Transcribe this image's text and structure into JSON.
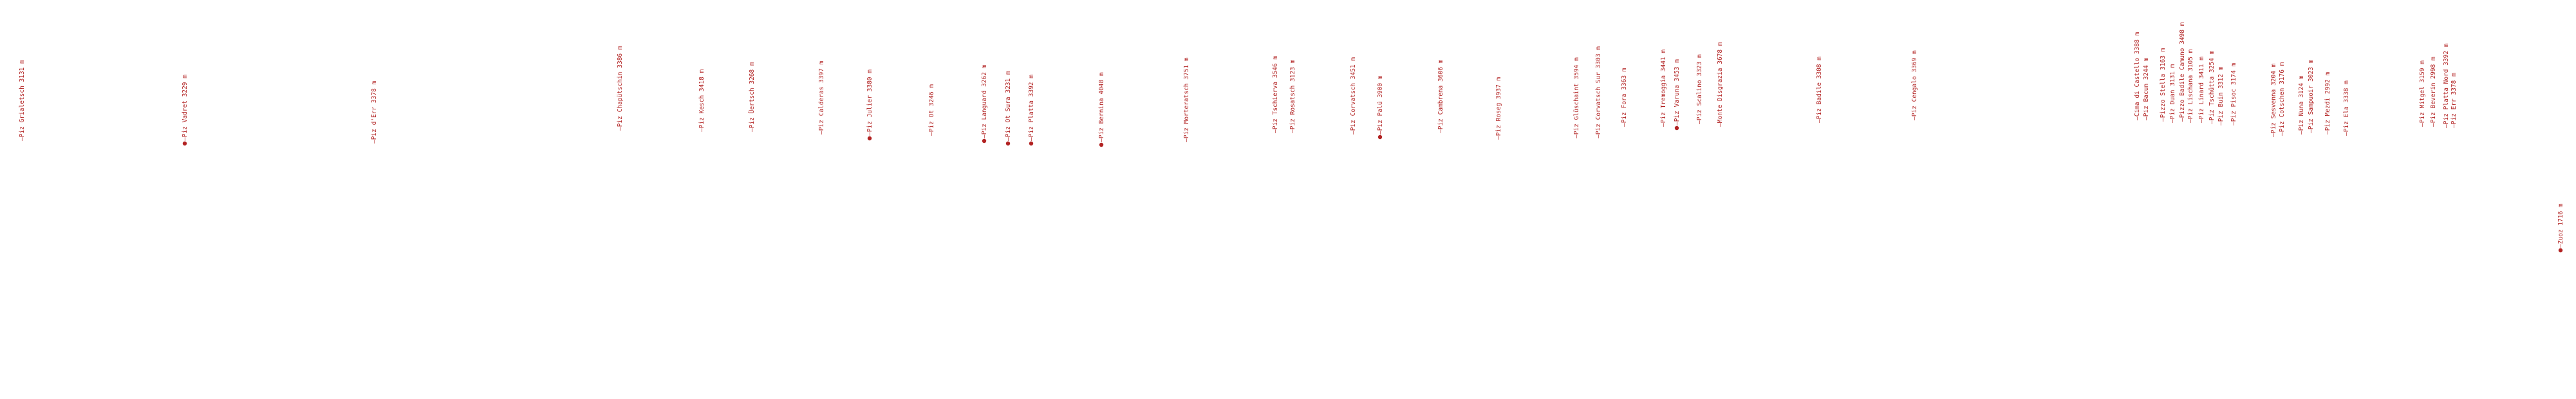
{
  "colors": {
    "marker": "#b22222",
    "text": "#b22222"
  },
  "peaks": [
    {
      "name": "Piz Grialetsch",
      "elevation": "3131 m",
      "marker": "tick"
    },
    {
      "name": "Piz Vadret",
      "elevation": "3229 m",
      "marker": "dot"
    },
    {
      "name": "Piz d'Err",
      "elevation": "3378 m",
      "marker": "tick"
    },
    {
      "name": "Piz Chapütschin",
      "elevation": "3386 m",
      "marker": "tick"
    },
    {
      "name": "Piz Kesch",
      "elevation": "3418 m",
      "marker": "tick"
    },
    {
      "name": "Piz Üertsch",
      "elevation": "3268 m",
      "marker": "tick"
    },
    {
      "name": "Piz Calderas",
      "elevation": "3397 m",
      "marker": "tick"
    },
    {
      "name": "Piz Julier",
      "elevation": "3380 m",
      "marker": "dot"
    },
    {
      "name": "Piz Ot",
      "elevation": "3246 m",
      "marker": "tick"
    },
    {
      "name": "Piz Languard",
      "elevation": "3262 m",
      "marker": "dot"
    },
    {
      "name": "Piz Ot Sura",
      "elevation": "3231 m",
      "marker": "dot"
    },
    {
      "name": "Piz Platta",
      "elevation": "3392 m",
      "marker": "dot"
    },
    {
      "name": "Piz Bernina",
      "elevation": "4048 m",
      "marker": "dot"
    },
    {
      "name": "Piz Morteratsch",
      "elevation": "3751 m",
      "marker": "tick"
    },
    {
      "name": "Piz Tschierva",
      "elevation": "3546 m",
      "marker": "tick"
    },
    {
      "name": "Piz Rosatsch",
      "elevation": "3123 m",
      "marker": "tick"
    },
    {
      "name": "Piz Corvatsch",
      "elevation": "3451 m",
      "marker": "tick"
    },
    {
      "name": "Piz Palü",
      "elevation": "3900 m",
      "marker": "dot"
    },
    {
      "name": "Piz Cambrena",
      "elevation": "3606 m",
      "marker": "tick"
    },
    {
      "name": "Piz Roseg",
      "elevation": "3937 m",
      "marker": "tick"
    },
    {
      "name": "Piz Glüschaint",
      "elevation": "3594 m",
      "marker": "tick"
    },
    {
      "name": "Piz Corvatsch Sur",
      "elevation": "3303 m",
      "marker": "tick"
    },
    {
      "name": "Piz Fora",
      "elevation": "3363 m",
      "marker": "tick"
    },
    {
      "name": "Piz Tremoggia",
      "elevation": "3441 m",
      "marker": "tick"
    },
    {
      "name": "Piz Varuna",
      "elevation": "3453 m",
      "marker": "dot"
    },
    {
      "name": "Piz Scalino",
      "elevation": "3323 m",
      "marker": "tick"
    },
    {
      "name": "Monte Disgrazia",
      "elevation": "3678 m",
      "marker": "tick"
    },
    {
      "name": "Piz Badile",
      "elevation": "3308 m",
      "marker": "tick"
    },
    {
      "name": "Piz Cengalo",
      "elevation": "3369 m",
      "marker": "tick"
    },
    {
      "name": "Cima di Castello",
      "elevation": "3388 m",
      "marker": "tick"
    },
    {
      "name": "Piz Bacun",
      "elevation": "3244 m",
      "marker": "tick"
    },
    {
      "name": "Pizzo Stella",
      "elevation": "3163 m",
      "marker": "tick"
    },
    {
      "name": "Piz Duan",
      "elevation": "3131 m",
      "marker": "tick"
    },
    {
      "name": "Pizzo Badile Camuno",
      "elevation": "3498 m",
      "marker": "tick"
    },
    {
      "name": "Piz Lischana",
      "elevation": "3105 m",
      "marker": "tick"
    },
    {
      "name": "Piz Linard",
      "elevation": "3411 m",
      "marker": "tick"
    },
    {
      "name": "Piz Tschütta",
      "elevation": "3254 m",
      "marker": "tick"
    },
    {
      "name": "Piz Buin",
      "elevation": "3312 m",
      "marker": "tick"
    },
    {
      "name": "Piz Pisoc",
      "elevation": "3174 m",
      "marker": "tick"
    },
    {
      "name": "Piz Sesvenna",
      "elevation": "3204 m",
      "marker": "tick"
    },
    {
      "name": "Piz Cotschen",
      "elevation": "3176 m",
      "marker": "tick"
    },
    {
      "name": "Piz Nuna",
      "elevation": "3124 m",
      "marker": "tick"
    },
    {
      "name": "Piz Sampuoir",
      "elevation": "3023 m",
      "marker": "tick"
    },
    {
      "name": "Piz Mezdi",
      "elevation": "2992 m",
      "marker": "tick"
    },
    {
      "name": "Piz Ela",
      "elevation": "3338 m",
      "marker": "tick"
    },
    {
      "name": "Piz Mitgel",
      "elevation": "3159 m",
      "marker": "tick"
    },
    {
      "name": "Piz Beverin",
      "elevation": "2998 m",
      "marker": "tick"
    },
    {
      "name": "Piz Platta Nord",
      "elevation": "3392 m",
      "marker": "tick"
    },
    {
      "name": "Piz Err",
      "elevation": "3378 m",
      "marker": "tick"
    },
    {
      "name": "Zuoz",
      "elevation": "1716 m",
      "marker": "dot"
    }
  ]
}
